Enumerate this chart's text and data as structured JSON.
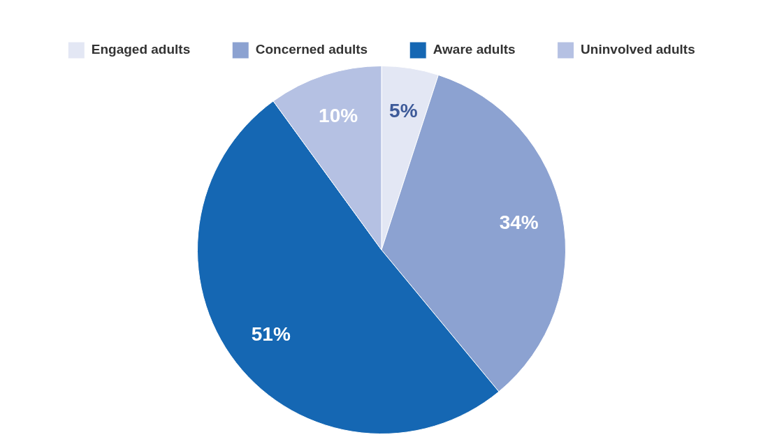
{
  "chart_data": {
    "type": "pie",
    "categories": [
      "Engaged adults",
      "Concerned adults",
      "Aware adults",
      "Uninvolved adults"
    ],
    "values": [
      5,
      34,
      51,
      10
    ],
    "colors": [
      "#e3e7f4",
      "#8ca2d1",
      "#1567b3",
      "#b5c1e3"
    ],
    "value_labels": [
      "5%",
      "34%",
      "51%",
      "10%"
    ],
    "legend": "top"
  }
}
